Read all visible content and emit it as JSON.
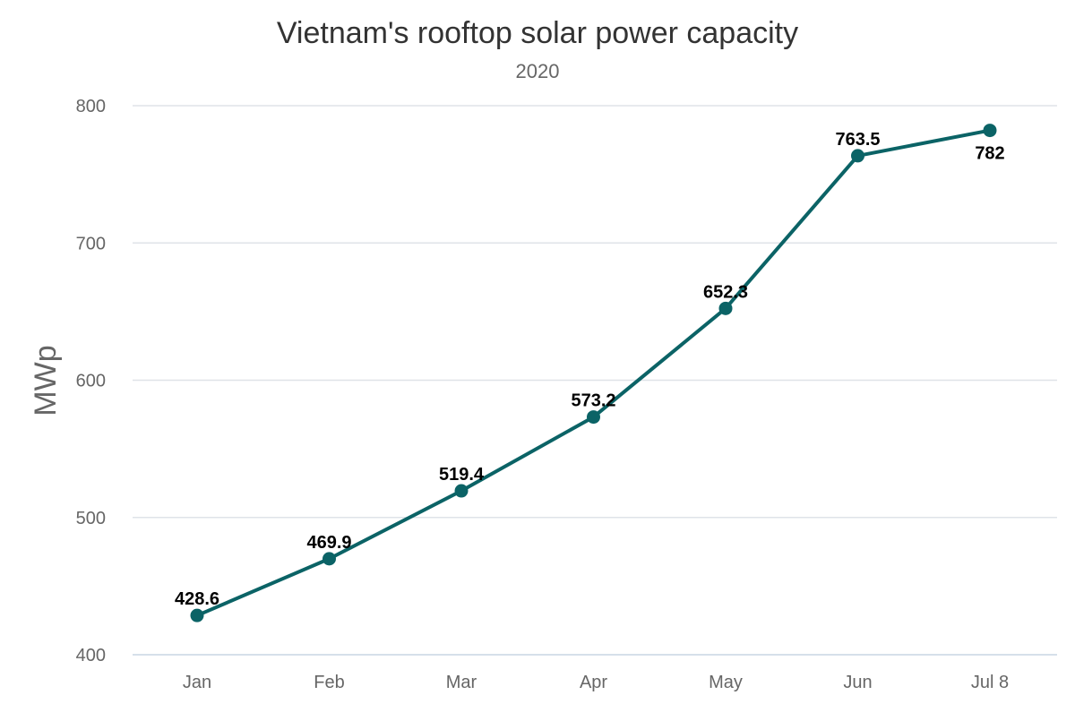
{
  "chart_data": {
    "type": "line",
    "title": "Vietnam's rooftop solar power capacity",
    "subtitle": "2020",
    "ylabel": "MWp",
    "xlabel": "",
    "categories": [
      "Jan",
      "Feb",
      "Mar",
      "Apr",
      "May",
      "Jun",
      "Jul 8"
    ],
    "series": [
      {
        "values": [
          428.6,
          469.9,
          519.4,
          573.2,
          652.3,
          763.5,
          782
        ],
        "labels": [
          "428.6",
          "469.9",
          "519.4",
          "573.2",
          "652.3",
          "763.5",
          "782"
        ],
        "color": "#0b6366"
      }
    ],
    "ylim": [
      400,
      800
    ],
    "yticks": [
      400,
      500,
      600,
      700,
      800
    ],
    "ytick_labels": [
      "400",
      "500",
      "600",
      "700",
      "800"
    ],
    "grid": true,
    "legend": "none"
  }
}
